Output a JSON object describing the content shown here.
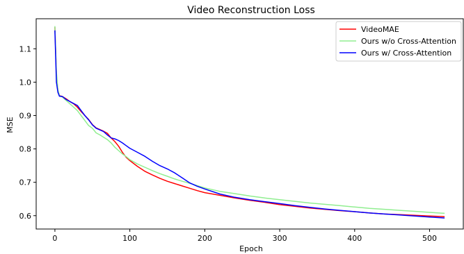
{
  "chart_data": {
    "type": "line",
    "title": "Video Reconstruction Loss",
    "xlabel": "Epoch",
    "ylabel": "MSE",
    "xlim": [
      -25,
      545
    ],
    "ylim": [
      0.56,
      1.19
    ],
    "xticks": [
      0,
      100,
      200,
      300,
      400,
      500
    ],
    "yticks": [
      0.6,
      0.7,
      0.8,
      0.9,
      1.0,
      1.1
    ],
    "xtick_labels": [
      "0",
      "100",
      "200",
      "300",
      "400",
      "500"
    ],
    "ytick_labels": [
      "0.6",
      "0.7",
      "0.8",
      "0.9",
      "1.0",
      "1.1"
    ],
    "grid": false,
    "legend_position": "top-right",
    "series": [
      {
        "name": "VideoMAE",
        "color": "#ff0000",
        "x": [
          0,
          2,
          4,
          6,
          10,
          15,
          20,
          25,
          30,
          35,
          40,
          45,
          50,
          55,
          60,
          65,
          70,
          75,
          80,
          85,
          90,
          95,
          100,
          110,
          120,
          130,
          140,
          150,
          160,
          170,
          180,
          190,
          200,
          220,
          240,
          260,
          280,
          300,
          320,
          340,
          360,
          380,
          400,
          420,
          440,
          460,
          480,
          500,
          520
        ],
        "y": [
          1.165,
          1.02,
          0.975,
          0.96,
          0.957,
          0.95,
          0.942,
          0.935,
          0.925,
          0.912,
          0.9,
          0.888,
          0.873,
          0.863,
          0.858,
          0.853,
          0.847,
          0.833,
          0.822,
          0.808,
          0.79,
          0.775,
          0.765,
          0.748,
          0.733,
          0.722,
          0.712,
          0.703,
          0.696,
          0.689,
          0.682,
          0.675,
          0.669,
          0.661,
          0.653,
          0.646,
          0.64,
          0.633,
          0.628,
          0.623,
          0.619,
          0.615,
          0.612,
          0.608,
          0.605,
          0.603,
          0.601,
          0.599,
          0.597
        ]
      },
      {
        "name": "Ours w/o Cross-Attention",
        "color": "#90ee90",
        "x": [
          0,
          2,
          4,
          6,
          10,
          15,
          20,
          25,
          30,
          35,
          40,
          45,
          50,
          55,
          60,
          65,
          70,
          75,
          80,
          85,
          90,
          95,
          100,
          110,
          120,
          130,
          140,
          150,
          160,
          170,
          180,
          190,
          200,
          220,
          240,
          260,
          280,
          300,
          320,
          340,
          360,
          380,
          400,
          420,
          440,
          460,
          480,
          500,
          520
        ],
        "y": [
          1.168,
          1.03,
          0.978,
          0.96,
          0.955,
          0.945,
          0.935,
          0.925,
          0.915,
          0.9,
          0.885,
          0.87,
          0.862,
          0.848,
          0.842,
          0.835,
          0.828,
          0.818,
          0.805,
          0.795,
          0.785,
          0.777,
          0.768,
          0.755,
          0.745,
          0.735,
          0.726,
          0.718,
          0.71,
          0.703,
          0.697,
          0.69,
          0.683,
          0.673,
          0.666,
          0.659,
          0.653,
          0.648,
          0.643,
          0.638,
          0.634,
          0.63,
          0.626,
          0.622,
          0.619,
          0.616,
          0.613,
          0.61,
          0.607
        ]
      },
      {
        "name": "Ours w/ Cross-Attention",
        "color": "#0000ff",
        "x": [
          0,
          2,
          4,
          6,
          10,
          15,
          20,
          25,
          30,
          35,
          40,
          45,
          50,
          55,
          60,
          65,
          70,
          75,
          80,
          85,
          90,
          95,
          100,
          110,
          120,
          130,
          140,
          150,
          160,
          170,
          180,
          190,
          200,
          220,
          240,
          260,
          280,
          300,
          320,
          340,
          360,
          380,
          400,
          420,
          440,
          460,
          480,
          500,
          520
        ],
        "y": [
          1.155,
          1.0,
          0.97,
          0.958,
          0.957,
          0.948,
          0.942,
          0.936,
          0.93,
          0.915,
          0.9,
          0.887,
          0.872,
          0.862,
          0.857,
          0.852,
          0.842,
          0.833,
          0.83,
          0.825,
          0.818,
          0.81,
          0.802,
          0.79,
          0.778,
          0.763,
          0.75,
          0.74,
          0.728,
          0.713,
          0.698,
          0.688,
          0.68,
          0.665,
          0.655,
          0.648,
          0.642,
          0.636,
          0.63,
          0.625,
          0.62,
          0.616,
          0.612,
          0.608,
          0.605,
          0.602,
          0.599,
          0.596,
          0.593
        ]
      }
    ]
  }
}
